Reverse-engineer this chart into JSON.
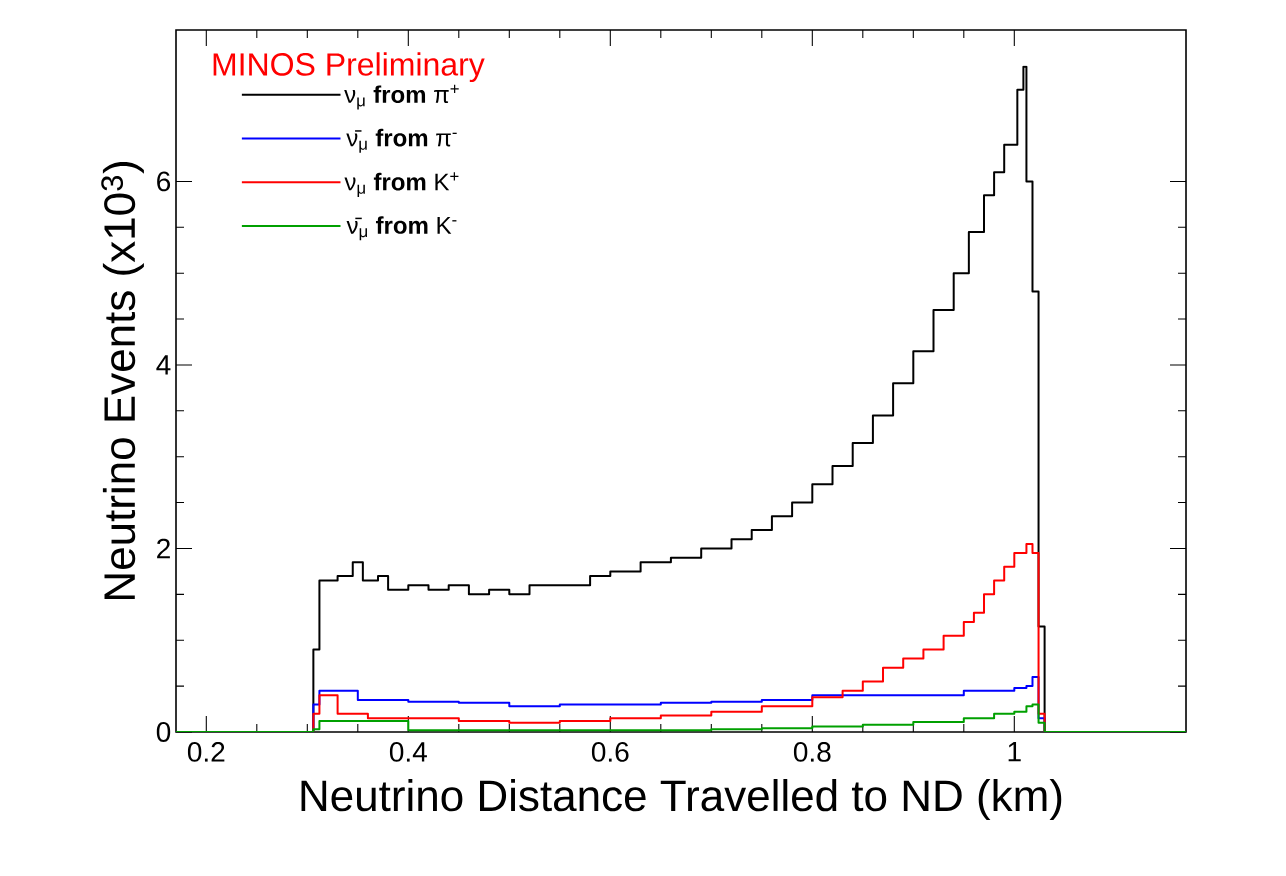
{
  "chart_data": {
    "type": "step",
    "xlabel": "Neutrino Distance Travelled to ND (km)",
    "ylabel": "Neutrino Events (x10$^{3}$)",
    "annotations": [
      "MINOS Preliminary"
    ],
    "xlim": [
      0.17,
      1.17
    ],
    "ylim": [
      0,
      7.65
    ],
    "xticks": [
      0.2,
      0.4,
      0.6,
      0.8,
      {
        "value": 1,
        "label": "1"
      }
    ],
    "yticks": [
      0,
      2,
      4,
      6
    ],
    "grid": false,
    "legend": "top left",
    "marker": "none",
    "line_style": "solid",
    "series": [
      {
        "name": "ν$_{μ}$ **from** π$^{+}$",
        "color": "#000000",
        "x": [
          0.17,
          0.306,
          0.312,
          0.33,
          0.345,
          0.355,
          0.37,
          0.38,
          0.4,
          0.42,
          0.44,
          0.46,
          0.48,
          0.5,
          0.52,
          0.55,
          0.58,
          0.6,
          0.63,
          0.66,
          0.69,
          0.72,
          0.74,
          0.76,
          0.78,
          0.8,
          0.82,
          0.84,
          0.86,
          0.88,
          0.9,
          0.92,
          0.94,
          0.955,
          0.97,
          0.98,
          0.99,
          1.003,
          1.009,
          1.012,
          1.018,
          1.024,
          1.03,
          1.17
        ],
        "values": [
          0,
          0.9,
          1.65,
          1.7,
          1.85,
          1.65,
          1.7,
          1.55,
          1.6,
          1.55,
          1.6,
          1.5,
          1.55,
          1.5,
          1.6,
          1.6,
          1.7,
          1.75,
          1.85,
          1.9,
          2.0,
          2.1,
          2.2,
          2.35,
          2.5,
          2.7,
          2.9,
          3.15,
          3.45,
          3.8,
          4.15,
          4.6,
          5.0,
          5.45,
          5.85,
          6.1,
          6.4,
          7.0,
          7.25,
          6.0,
          4.8,
          1.15,
          0,
          0
        ]
      },
      {
        "name": "ν̄$_{μ}$ **from** π$^{-}$",
        "color": "#0000ff",
        "x": [
          0.17,
          0.306,
          0.312,
          0.35,
          0.4,
          0.45,
          0.5,
          0.55,
          0.6,
          0.65,
          0.7,
          0.75,
          0.8,
          0.85,
          0.9,
          0.95,
          0.98,
          1.0,
          1.012,
          1.018,
          1.024,
          1.03,
          1.17
        ],
        "values": [
          0,
          0.3,
          0.45,
          0.35,
          0.33,
          0.32,
          0.28,
          0.3,
          0.3,
          0.32,
          0.33,
          0.35,
          0.4,
          0.4,
          0.4,
          0.45,
          0.45,
          0.48,
          0.5,
          0.6,
          0.15,
          0,
          0
        ]
      },
      {
        "name": "ν$_{μ}$ **from** K$^{+}$",
        "color": "#ff0000",
        "x": [
          0.17,
          0.306,
          0.312,
          0.33,
          0.36,
          0.4,
          0.45,
          0.5,
          0.55,
          0.6,
          0.65,
          0.7,
          0.75,
          0.8,
          0.83,
          0.85,
          0.87,
          0.89,
          0.91,
          0.93,
          0.95,
          0.96,
          0.97,
          0.98,
          0.99,
          1.0,
          1.012,
          1.018,
          1.024,
          1.03,
          1.17
        ],
        "values": [
          0,
          0.2,
          0.4,
          0.2,
          0.15,
          0.15,
          0.12,
          0.1,
          0.12,
          0.15,
          0.18,
          0.22,
          0.28,
          0.38,
          0.45,
          0.55,
          0.7,
          0.8,
          0.9,
          1.05,
          1.2,
          1.3,
          1.5,
          1.65,
          1.8,
          1.95,
          2.05,
          1.95,
          0.2,
          0,
          0
        ]
      },
      {
        "name": "ν̄$_{μ}$ **from** K$^{-}$",
        "color": "#00a000",
        "x": [
          0.17,
          0.306,
          0.312,
          0.4,
          0.5,
          0.6,
          0.7,
          0.75,
          0.8,
          0.85,
          0.9,
          0.95,
          0.98,
          1.0,
          1.012,
          1.018,
          1.024,
          1.03,
          1.17
        ],
        "values": [
          0,
          0.03,
          0.12,
          0.02,
          0.02,
          0.02,
          0.03,
          0.04,
          0.06,
          0.08,
          0.11,
          0.15,
          0.2,
          0.22,
          0.28,
          0.3,
          0.1,
          0,
          0
        ]
      }
    ]
  }
}
